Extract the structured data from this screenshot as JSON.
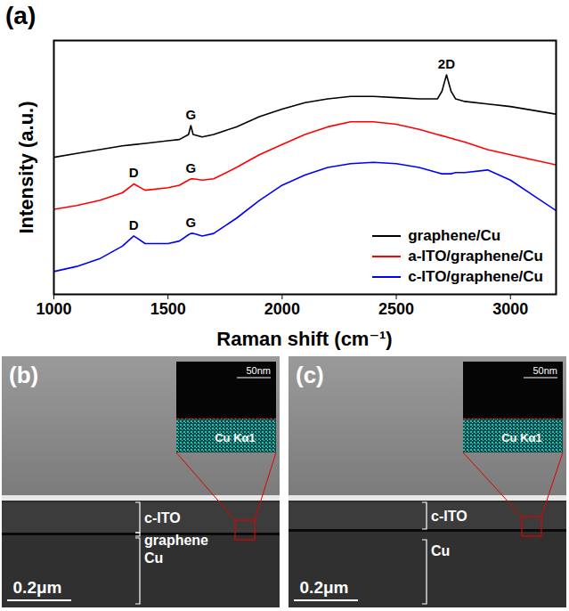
{
  "chart_data": {
    "type": "line",
    "panel": "(a)",
    "x_label": "Raman shift (cm⁻¹)",
    "y_label": "Intensity (a.u.)",
    "x": [
      1000,
      1100,
      1200,
      1300,
      1350,
      1400,
      1500,
      1550,
      1590,
      1600,
      1610,
      1650,
      1700,
      1800,
      1900,
      2000,
      2100,
      2200,
      2300,
      2400,
      2500,
      2600,
      2680,
      2700,
      2720,
      2740,
      2760,
      2800,
      2900,
      3000,
      3100,
      3200
    ],
    "series": [
      {
        "name": "graphene/Cu",
        "color": "#000000",
        "values": [
          54,
          55.5,
          57,
          58.5,
          59,
          59.5,
          60.5,
          61,
          63,
          66.5,
          63,
          62,
          63,
          66,
          70,
          73,
          75.5,
          77,
          78,
          78,
          77.5,
          77,
          77,
          80,
          86.5,
          80,
          77,
          76,
          75,
          74,
          72.5,
          71
        ]
      },
      {
        "name": "a-ITO/graphene/Cu",
        "color": "#ff0000",
        "values": [
          33.5,
          35,
          37,
          40,
          43.5,
          41,
          42,
          43,
          45,
          45.5,
          45.5,
          45,
          45.5,
          50,
          55,
          59,
          63,
          66,
          68,
          68,
          67,
          65,
          63,
          62.5,
          62,
          61.5,
          61,
          60,
          57,
          55,
          53,
          51
        ]
      },
      {
        "name": "c-ITO/graphene/Cu",
        "color": "#0000ff",
        "values": [
          9,
          11,
          14,
          19,
          23,
          20,
          20,
          21,
          23.5,
          24,
          24,
          23,
          24,
          30,
          37,
          43,
          47,
          50,
          51.5,
          52,
          51.5,
          50,
          48,
          47.5,
          47.5,
          47.5,
          48,
          48,
          49,
          45,
          39,
          33
        ]
      }
    ],
    "annotations": [
      {
        "text": "G",
        "x": 1600,
        "y": 66.5
      },
      {
        "text": "2D",
        "x": 2720,
        "y": 86.5
      },
      {
        "text": "D",
        "x": 1350,
        "y": 43.5
      },
      {
        "text": "G",
        "x": 1600,
        "y": 45.5
      },
      {
        "text": "D",
        "x": 1350,
        "y": 23
      },
      {
        "text": "G",
        "x": 1600,
        "y": 24
      }
    ],
    "xlim": [
      1000,
      3200
    ],
    "xticks": [
      1000,
      1500,
      2000,
      2500,
      3000
    ],
    "ylim": [
      0,
      100
    ],
    "tick_labels": "x",
    "legend": "lower right",
    "grid": false
  },
  "images": [
    {
      "panel": "(b)",
      "inset_scale_bar": "50nm",
      "inset_map": "Cu Kα1",
      "layers": [
        "c-ITO",
        "graphene",
        "Cu"
      ],
      "scale_bar": "0.2μm"
    },
    {
      "panel": "(c)",
      "inset_scale_bar": "50nm",
      "inset_map": "Cu Kα1",
      "layers": [
        "c-ITO",
        "Cu"
      ],
      "scale_bar": "0.2μm"
    }
  ]
}
